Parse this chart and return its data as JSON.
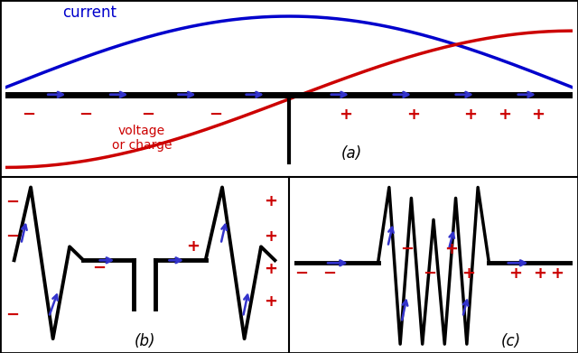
{
  "bg_color": "#ffffff",
  "border_color": "#000000",
  "current_color": "#0000cc",
  "voltage_color": "#cc0000",
  "wire_color": "#000000",
  "arrow_color": "#3333cc",
  "minus_color": "#cc0000",
  "plus_color": "#cc0000",
  "label_a": "(a)",
  "label_b": "(b)",
  "label_c": "(c)",
  "current_label": "current",
  "voltage_label": "voltage\nor charge"
}
